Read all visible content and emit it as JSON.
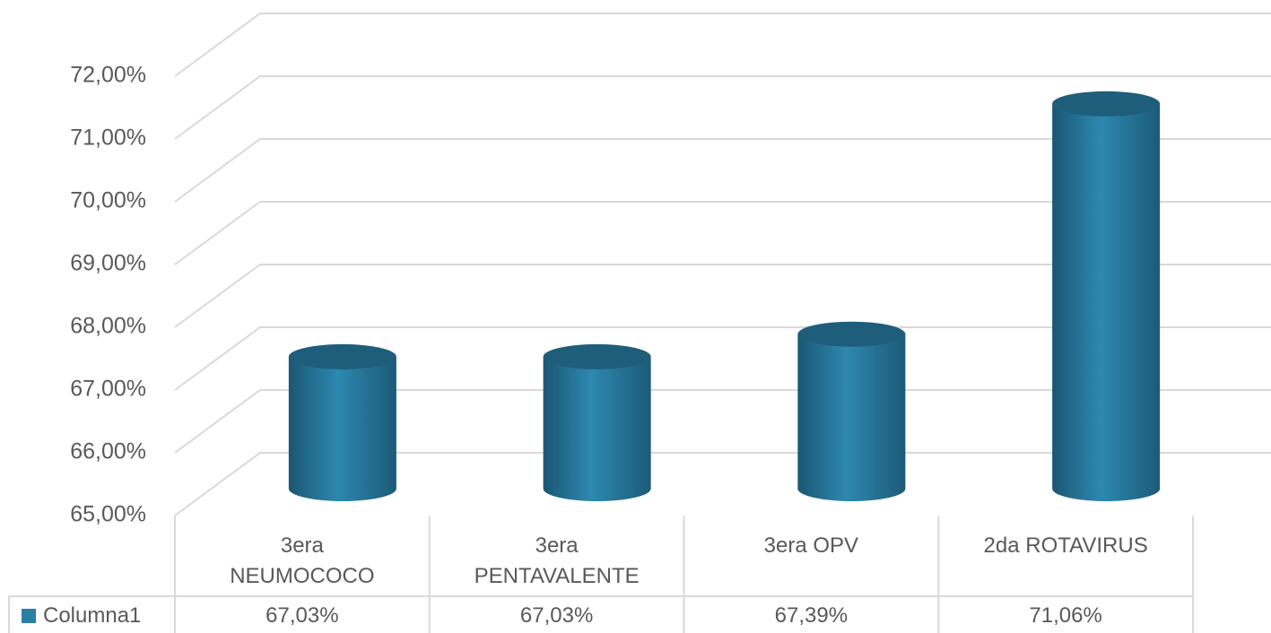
{
  "chart_data": {
    "type": "bar",
    "style": "3d-cylinder",
    "categories": [
      "3era NEUMOCOCO",
      "3era PENTAVALENTE",
      "3era OPV",
      "2da ROTAVIRUS"
    ],
    "series": [
      {
        "name": "Columna1",
        "color": "#2a7fa5",
        "values": [
          67.03,
          67.03,
          67.39,
          71.06
        ],
        "value_labels": [
          "67,03%",
          "67,03%",
          "67,39%",
          "71,06%"
        ]
      }
    ],
    "ylim": [
      65,
      72
    ],
    "yticks": [
      {
        "value": 65,
        "label": "65,00%"
      },
      {
        "value": 66,
        "label": "66,00%"
      },
      {
        "value": 67,
        "label": "67,00%"
      },
      {
        "value": 68,
        "label": "68,00%"
      },
      {
        "value": 69,
        "label": "69,00%"
      },
      {
        "value": 70,
        "label": "70,00%"
      },
      {
        "value": 71,
        "label": "71,00%"
      },
      {
        "value": 72,
        "label": "72,00%"
      }
    ],
    "grid": true,
    "data_table": true
  }
}
